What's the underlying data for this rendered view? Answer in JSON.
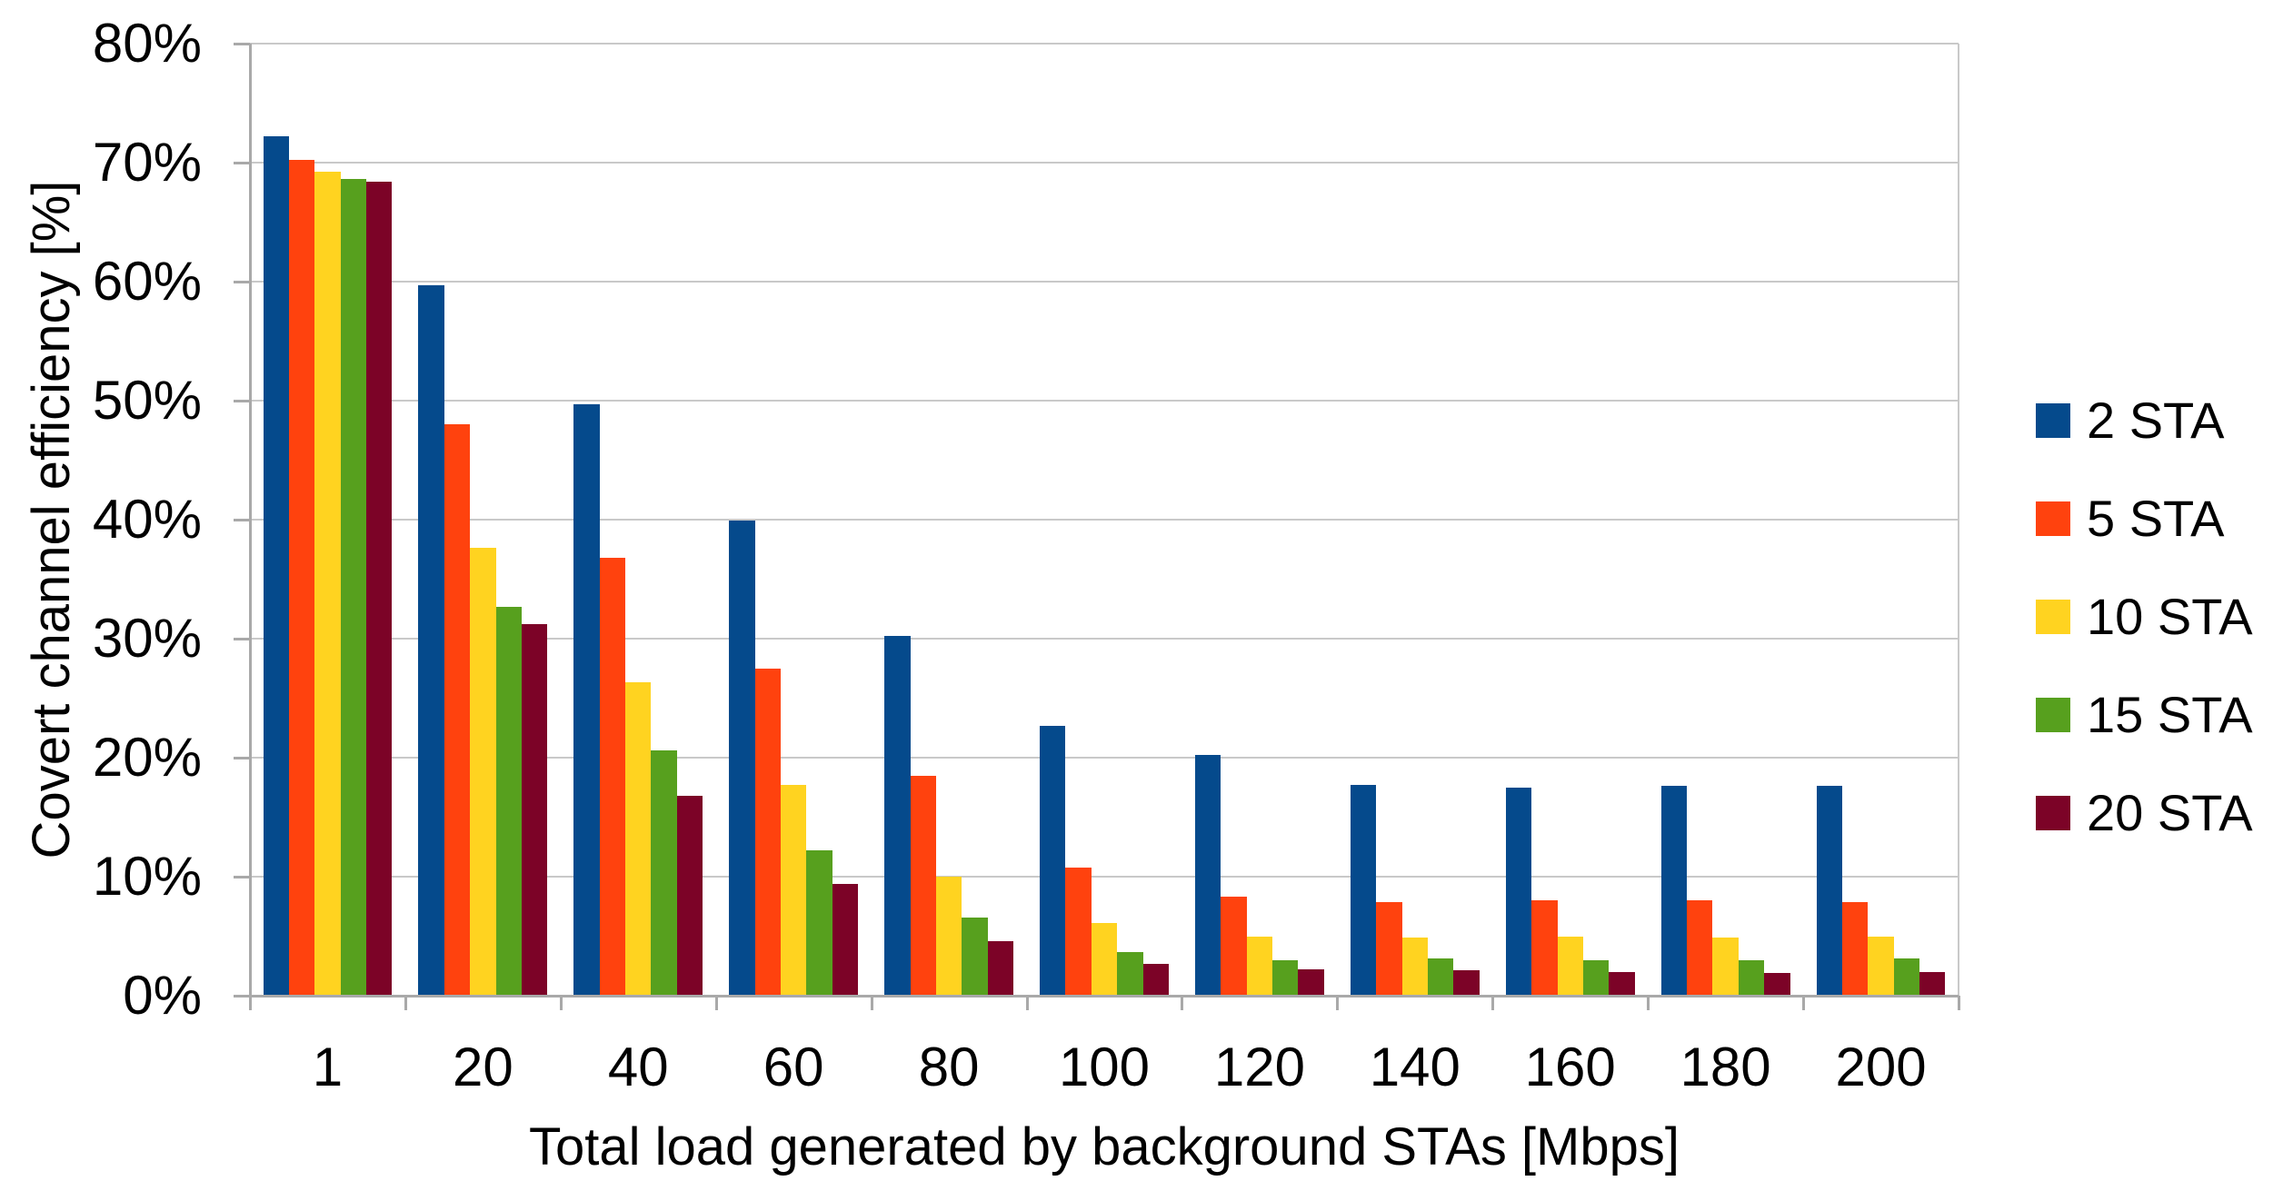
{
  "chart_data": {
    "type": "bar",
    "title": "",
    "xlabel": "Total load generated by background STAs [Mbps]",
    "ylabel": "Covert channel efficiency [%]",
    "categories": [
      "1",
      "20",
      "40",
      "60",
      "80",
      "100",
      "120",
      "140",
      "160",
      "180",
      "200"
    ],
    "series": [
      {
        "name": "2 STA",
        "color": "#054a8c",
        "values": [
          72.2,
          59.7,
          49.7,
          39.9,
          30.2,
          22.7,
          20.2,
          17.7,
          17.5,
          17.6,
          17.6
        ]
      },
      {
        "name": "5 STA",
        "color": "#ff420e",
        "values": [
          70.2,
          48.0,
          36.8,
          27.5,
          18.5,
          10.8,
          8.3,
          7.9,
          8.0,
          8.0,
          7.9
        ]
      },
      {
        "name": "10 STA",
        "color": "#ffd320",
        "values": [
          69.2,
          37.6,
          26.3,
          17.7,
          10.0,
          6.1,
          5.0,
          4.9,
          5.0,
          4.9,
          5.0
        ]
      },
      {
        "name": "15 STA",
        "color": "#57a01e",
        "values": [
          68.6,
          32.7,
          20.6,
          12.2,
          6.6,
          3.7,
          3.0,
          3.1,
          3.0,
          3.0,
          3.1
        ]
      },
      {
        "name": "20 STA",
        "color": "#7c0327",
        "values": [
          68.4,
          31.2,
          16.8,
          9.4,
          4.6,
          2.7,
          2.2,
          2.1,
          2.0,
          1.9,
          2.0
        ]
      }
    ],
    "ylim": [
      0,
      80
    ],
    "ytick_step": 10,
    "ytick_suffix": "%",
    "grid": true,
    "legend_position": "right"
  },
  "colors": {
    "background": "#ffffff",
    "gridline": "#c9c9c9",
    "axis": "#a9a9a9",
    "text": "#000000"
  }
}
